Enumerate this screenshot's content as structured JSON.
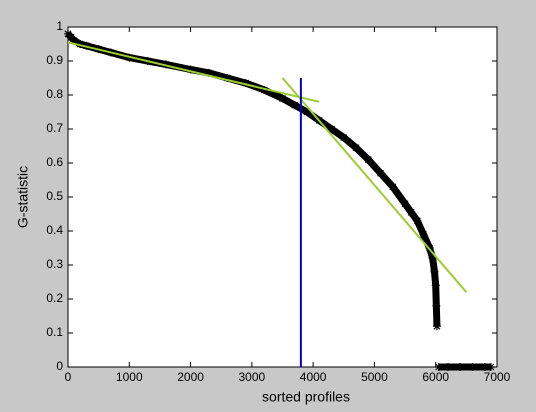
{
  "chart_data": {
    "type": "line",
    "xlabel": "sorted profiles",
    "ylabel": "G-statistic",
    "xlim": [
      0,
      7000
    ],
    "ylim": [
      0,
      1
    ],
    "xticks": [
      0,
      1000,
      2000,
      3000,
      4000,
      5000,
      6000,
      7000
    ],
    "yticks": [
      0,
      0.1,
      0.2,
      0.3,
      0.4,
      0.5,
      0.6,
      0.7,
      0.8,
      0.9,
      1
    ],
    "series": [
      {
        "color": "#000000",
        "marker": "*",
        "x": [
          0,
          50,
          100,
          200,
          300,
          500,
          700,
          1000,
          1300,
          1600,
          2000,
          2300,
          2600,
          2900,
          3200,
          3500,
          3700,
          3900,
          4100,
          4300,
          4500,
          4700,
          4900,
          5100,
          5300,
          5500,
          5600,
          5700,
          5800,
          5900,
          5950,
          5980,
          6000,
          6010,
          6020,
          6035,
          6050,
          6200,
          6400,
          6600,
          6800,
          6900
        ],
        "values": [
          0.98,
          0.97,
          0.96,
          0.95,
          0.945,
          0.935,
          0.925,
          0.91,
          0.9,
          0.89,
          0.875,
          0.865,
          0.85,
          0.835,
          0.815,
          0.79,
          0.77,
          0.75,
          0.725,
          0.7,
          0.675,
          0.645,
          0.61,
          0.57,
          0.53,
          0.48,
          0.455,
          0.43,
          0.39,
          0.35,
          0.32,
          0.28,
          0.24,
          0.18,
          0.12,
          null,
          0,
          0,
          0,
          0,
          0,
          0
        ]
      },
      {
        "color": "#9acd32",
        "x": [
          0,
          4100
        ],
        "values": [
          0.955,
          0.78
        ]
      },
      {
        "color": "#9acd32",
        "x": [
          3500,
          6500
        ],
        "values": [
          0.85,
          0.22
        ]
      },
      {
        "color": "#0000cc",
        "x": [
          3800,
          3800
        ],
        "values": [
          0,
          0.85
        ]
      }
    ]
  }
}
